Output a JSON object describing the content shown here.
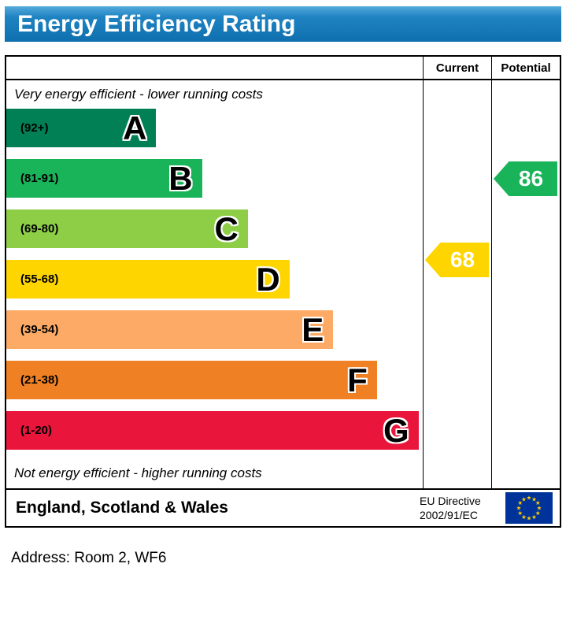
{
  "title": "Energy Efficiency Rating",
  "table": {
    "columns": [
      {
        "label": "Current"
      },
      {
        "label": "Potential"
      }
    ],
    "top_note": "Very energy efficient - lower running costs",
    "bottom_note": "Not energy efficient - higher running costs"
  },
  "bands": [
    {
      "letter": "A",
      "range": "(92+)",
      "min": 92,
      "max": 100,
      "color": "#008054",
      "width_pct": 36
    },
    {
      "letter": "B",
      "range": "(81-91)",
      "min": 81,
      "max": 91,
      "color": "#19b459",
      "width_pct": 47
    },
    {
      "letter": "C",
      "range": "(69-80)",
      "min": 69,
      "max": 80,
      "color": "#8dce46",
      "width_pct": 58
    },
    {
      "letter": "D",
      "range": "(55-68)",
      "min": 55,
      "max": 68,
      "color": "#ffd500",
      "width_pct": 68
    },
    {
      "letter": "E",
      "range": "(39-54)",
      "min": 39,
      "max": 54,
      "color": "#fcaa65",
      "width_pct": 78.5
    },
    {
      "letter": "F",
      "range": "(21-38)",
      "min": 21,
      "max": 38,
      "color": "#ef8023",
      "width_pct": 89
    },
    {
      "letter": "G",
      "range": "(1-20)",
      "min": 1,
      "max": 20,
      "color": "#e9153b",
      "width_pct": 99
    }
  ],
  "ratings": {
    "current": {
      "value": 68,
      "band": "D",
      "color": "#ffd500"
    },
    "potential": {
      "value": 86,
      "band": "B",
      "color": "#19b459"
    }
  },
  "footer": {
    "region": "England, Scotland & Wales",
    "directive_line1": "EU Directive",
    "directive_line2": "2002/91/EC",
    "flag_field_color": "#003399",
    "flag_star_color": "#ffcc00"
  },
  "address": "Address: Room 2, WF6",
  "chart_data": {
    "type": "bar",
    "title": "Energy Efficiency Rating",
    "categories": [
      "A",
      "B",
      "C",
      "D",
      "E",
      "F",
      "G"
    ],
    "band_ranges": [
      "92+",
      "81-91",
      "69-80",
      "55-68",
      "39-54",
      "21-38",
      "1-20"
    ],
    "band_colors": [
      "#008054",
      "#19b459",
      "#8dce46",
      "#ffd500",
      "#fcaa65",
      "#ef8023",
      "#e9153b"
    ],
    "series": [
      {
        "name": "Current",
        "values": [
          68
        ],
        "band": "D"
      },
      {
        "name": "Potential",
        "values": [
          86
        ],
        "band": "B"
      }
    ],
    "annotations": [
      "Very energy efficient - lower running costs",
      "Not energy efficient - higher running costs"
    ],
    "footer": "England, Scotland & Wales | EU Directive 2002/91/EC",
    "value_range": [
      1,
      100
    ],
    "legend_position": "none",
    "grid": false
  }
}
